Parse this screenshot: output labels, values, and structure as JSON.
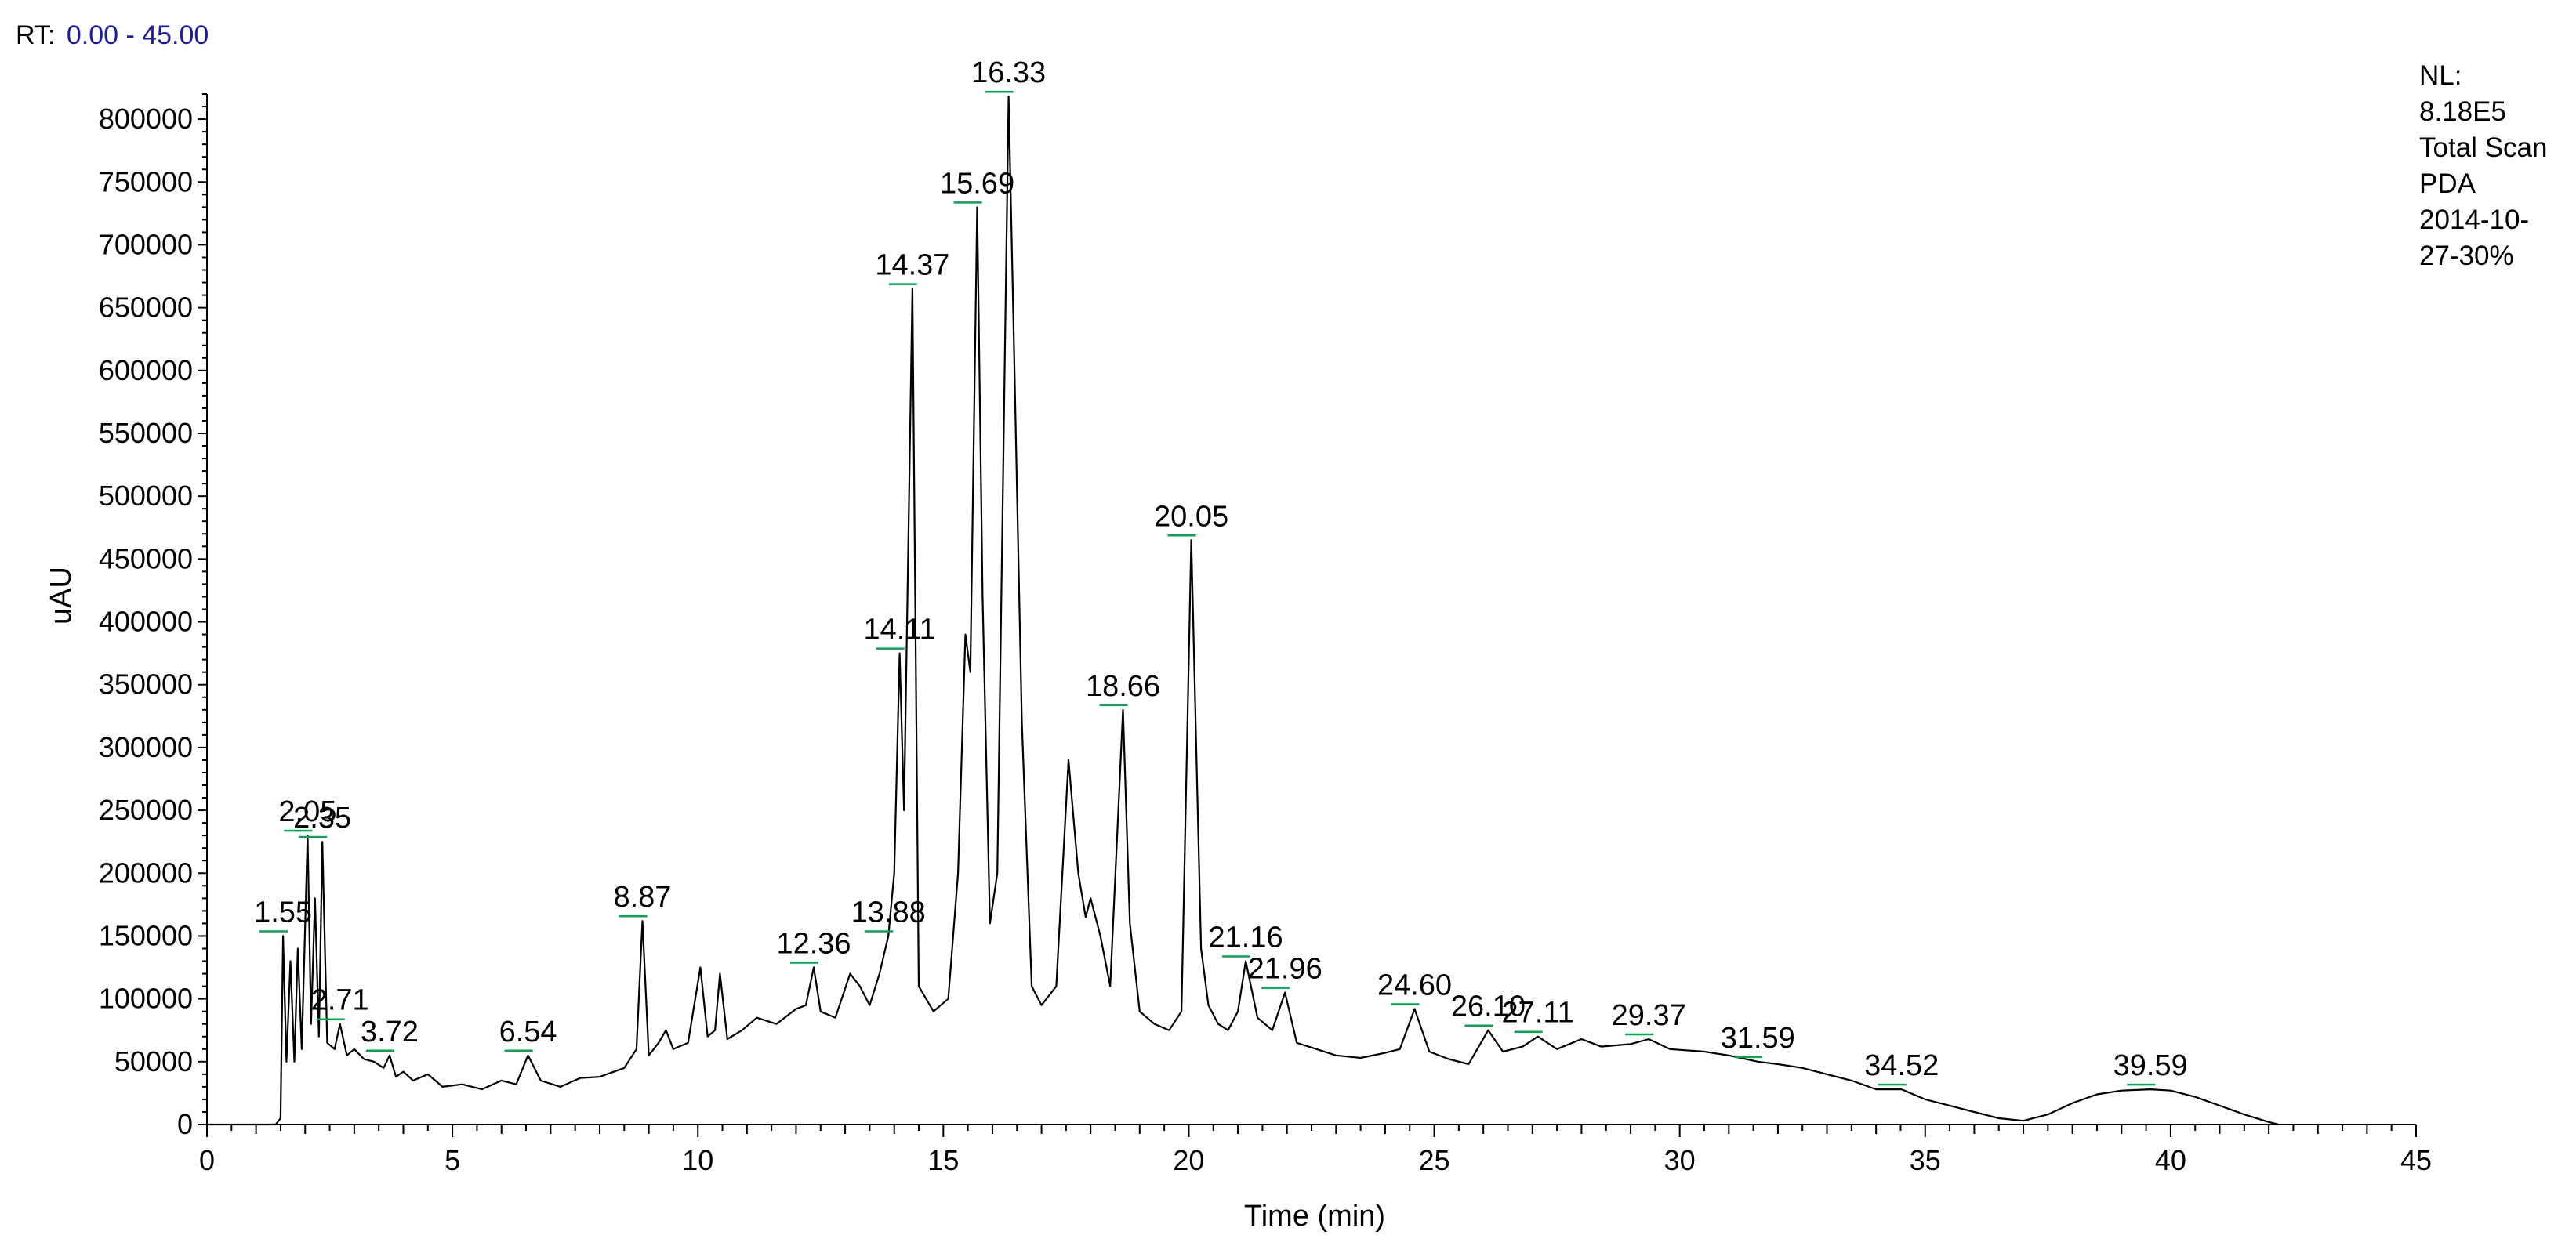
{
  "header": {
    "rt_prefix": "RT:",
    "rt_range": "0.00 - 45.00"
  },
  "info": {
    "lines": [
      "NL:",
      "8.18E5",
      "Total Scan",
      "PDA",
      "2014-10-",
      "27-30%"
    ]
  },
  "colors": {
    "trace": "#000000",
    "axis": "#000000",
    "peak_marker": "#00a84f",
    "rt_value": "#1a1aa8"
  },
  "chart_data": {
    "type": "line",
    "title": "",
    "xlabel": "Time (min)",
    "ylabel": "uAU",
    "xlim": [
      0,
      45
    ],
    "ylim": [
      0,
      820000
    ],
    "xticks": [
      0,
      5,
      10,
      15,
      20,
      25,
      30,
      35,
      40,
      45
    ],
    "yticks": [
      0,
      50000,
      100000,
      150000,
      200000,
      250000,
      300000,
      350000,
      400000,
      450000,
      500000,
      550000,
      600000,
      650000,
      700000,
      750000,
      800000
    ],
    "grid": false,
    "series": [
      {
        "points": [
          [
            0,
            0
          ],
          [
            1.4,
            0
          ],
          [
            1.5,
            5000
          ],
          [
            1.55,
            150000
          ],
          [
            1.62,
            50000
          ],
          [
            1.7,
            130000
          ],
          [
            1.78,
            50000
          ],
          [
            1.85,
            140000
          ],
          [
            1.93,
            60000
          ],
          [
            2.05,
            230000
          ],
          [
            2.12,
            80000
          ],
          [
            2.2,
            180000
          ],
          [
            2.28,
            70000
          ],
          [
            2.35,
            225000
          ],
          [
            2.45,
            65000
          ],
          [
            2.6,
            60000
          ],
          [
            2.71,
            80000
          ],
          [
            2.85,
            55000
          ],
          [
            3.0,
            60000
          ],
          [
            3.2,
            52000
          ],
          [
            3.4,
            50000
          ],
          [
            3.6,
            45000
          ],
          [
            3.72,
            55000
          ],
          [
            3.85,
            38000
          ],
          [
            4.0,
            42000
          ],
          [
            4.2,
            35000
          ],
          [
            4.5,
            40000
          ],
          [
            4.8,
            30000
          ],
          [
            5.2,
            32000
          ],
          [
            5.6,
            28000
          ],
          [
            6.0,
            35000
          ],
          [
            6.3,
            32000
          ],
          [
            6.54,
            55000
          ],
          [
            6.8,
            35000
          ],
          [
            7.2,
            30000
          ],
          [
            7.6,
            37000
          ],
          [
            8.0,
            38000
          ],
          [
            8.5,
            45000
          ],
          [
            8.75,
            60000
          ],
          [
            8.87,
            162000
          ],
          [
            9.0,
            55000
          ],
          [
            9.2,
            65000
          ],
          [
            9.35,
            75000
          ],
          [
            9.5,
            60000
          ],
          [
            9.8,
            65000
          ],
          [
            10.05,
            125000
          ],
          [
            10.2,
            70000
          ],
          [
            10.35,
            75000
          ],
          [
            10.45,
            120000
          ],
          [
            10.6,
            68000
          ],
          [
            10.9,
            75000
          ],
          [
            11.2,
            85000
          ],
          [
            11.6,
            80000
          ],
          [
            12.0,
            92000
          ],
          [
            12.2,
            95000
          ],
          [
            12.36,
            125000
          ],
          [
            12.5,
            90000
          ],
          [
            12.8,
            85000
          ],
          [
            13.1,
            120000
          ],
          [
            13.3,
            110000
          ],
          [
            13.5,
            95000
          ],
          [
            13.7,
            120000
          ],
          [
            13.88,
            150000
          ],
          [
            14.0,
            200000
          ],
          [
            14.11,
            375000
          ],
          [
            14.2,
            250000
          ],
          [
            14.37,
            665000
          ],
          [
            14.5,
            110000
          ],
          [
            14.8,
            90000
          ],
          [
            15.1,
            100000
          ],
          [
            15.3,
            200000
          ],
          [
            15.45,
            390000
          ],
          [
            15.55,
            360000
          ],
          [
            15.69,
            730000
          ],
          [
            15.8,
            420000
          ],
          [
            15.95,
            160000
          ],
          [
            16.1,
            200000
          ],
          [
            16.33,
            818000
          ],
          [
            16.45,
            600000
          ],
          [
            16.6,
            320000
          ],
          [
            16.8,
            110000
          ],
          [
            17.0,
            95000
          ],
          [
            17.3,
            110000
          ],
          [
            17.55,
            290000
          ],
          [
            17.75,
            200000
          ],
          [
            17.9,
            165000
          ],
          [
            18.0,
            180000
          ],
          [
            18.2,
            150000
          ],
          [
            18.4,
            110000
          ],
          [
            18.66,
            330000
          ],
          [
            18.8,
            160000
          ],
          [
            19.0,
            90000
          ],
          [
            19.3,
            80000
          ],
          [
            19.6,
            75000
          ],
          [
            19.85,
            90000
          ],
          [
            20.05,
            465000
          ],
          [
            20.25,
            140000
          ],
          [
            20.4,
            95000
          ],
          [
            20.6,
            80000
          ],
          [
            20.8,
            75000
          ],
          [
            21.0,
            90000
          ],
          [
            21.16,
            130000
          ],
          [
            21.4,
            85000
          ],
          [
            21.7,
            75000
          ],
          [
            21.96,
            105000
          ],
          [
            22.2,
            65000
          ],
          [
            22.6,
            60000
          ],
          [
            23.0,
            55000
          ],
          [
            23.5,
            53000
          ],
          [
            24.0,
            57000
          ],
          [
            24.3,
            60000
          ],
          [
            24.6,
            92000
          ],
          [
            24.9,
            58000
          ],
          [
            25.3,
            52000
          ],
          [
            25.7,
            48000
          ],
          [
            26.1,
            75000
          ],
          [
            26.4,
            58000
          ],
          [
            26.8,
            62000
          ],
          [
            27.11,
            70000
          ],
          [
            27.5,
            60000
          ],
          [
            28.0,
            68000
          ],
          [
            28.4,
            62000
          ],
          [
            29.0,
            64000
          ],
          [
            29.37,
            68000
          ],
          [
            29.8,
            60000
          ],
          [
            30.5,
            58000
          ],
          [
            31.0,
            55000
          ],
          [
            31.59,
            50000
          ],
          [
            32.0,
            48000
          ],
          [
            32.5,
            45000
          ],
          [
            33.0,
            40000
          ],
          [
            33.5,
            35000
          ],
          [
            34.0,
            28000
          ],
          [
            34.52,
            28000
          ],
          [
            35.0,
            20000
          ],
          [
            35.5,
            15000
          ],
          [
            36.0,
            10000
          ],
          [
            36.5,
            5000
          ],
          [
            37.0,
            3000
          ],
          [
            37.5,
            8000
          ],
          [
            38.0,
            17000
          ],
          [
            38.5,
            24000
          ],
          [
            39.0,
            27000
          ],
          [
            39.59,
            28000
          ],
          [
            40.0,
            27000
          ],
          [
            40.5,
            22000
          ],
          [
            41.0,
            15000
          ],
          [
            41.5,
            8000
          ],
          [
            42.0,
            2000
          ],
          [
            42.2,
            0
          ]
        ]
      }
    ],
    "peaks": [
      {
        "rt": "1.55",
        "x": 1.55,
        "y": 150000
      },
      {
        "rt": "2.05",
        "x": 2.05,
        "y": 230000
      },
      {
        "rt": "2.35",
        "x": 2.35,
        "y": 225000
      },
      {
        "rt": "2.71",
        "x": 2.71,
        "y": 80000
      },
      {
        "rt": "3.72",
        "x": 3.72,
        "y": 55000
      },
      {
        "rt": "6.54",
        "x": 6.54,
        "y": 55000
      },
      {
        "rt": "8.87",
        "x": 8.87,
        "y": 162000
      },
      {
        "rt": "12.36",
        "x": 12.36,
        "y": 125000
      },
      {
        "rt": "13.88",
        "x": 13.88,
        "y": 150000
      },
      {
        "rt": "14.11",
        "x": 14.11,
        "y": 375000
      },
      {
        "rt": "14.37",
        "x": 14.37,
        "y": 665000
      },
      {
        "rt": "15.69",
        "x": 15.69,
        "y": 730000
      },
      {
        "rt": "16.33",
        "x": 16.33,
        "y": 818000
      },
      {
        "rt": "18.66",
        "x": 18.66,
        "y": 330000
      },
      {
        "rt": "20.05",
        "x": 20.05,
        "y": 465000
      },
      {
        "rt": "21.16",
        "x": 21.16,
        "y": 130000
      },
      {
        "rt": "21.96",
        "x": 21.96,
        "y": 105000
      },
      {
        "rt": "24.60",
        "x": 24.6,
        "y": 92000
      },
      {
        "rt": "26.10",
        "x": 26.1,
        "y": 75000
      },
      {
        "rt": "27.11",
        "x": 27.11,
        "y": 70000
      },
      {
        "rt": "29.37",
        "x": 29.37,
        "y": 68000
      },
      {
        "rt": "31.59",
        "x": 31.59,
        "y": 50000
      },
      {
        "rt": "34.52",
        "x": 34.52,
        "y": 28000
      },
      {
        "rt": "39.59",
        "x": 39.59,
        "y": 28000
      }
    ]
  }
}
